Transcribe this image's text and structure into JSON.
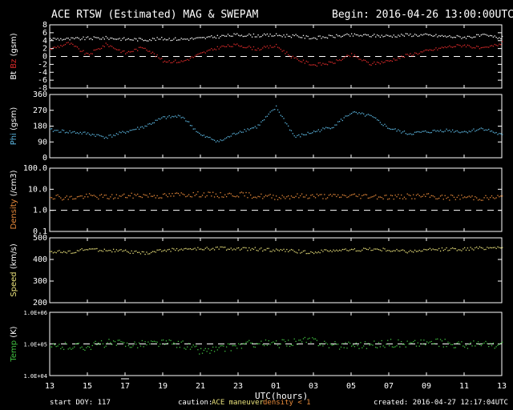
{
  "header": {
    "title": "ACE RTSW (Estimated) MAG & SWEPAM",
    "begin": "Begin: 2016-04-26 13:00:00UTC"
  },
  "footer": {
    "start_doy": "start DOY: 117",
    "caution_label": "caution:",
    "caution_maneuver": "ACE maneuver",
    "caution_density": "density < 1",
    "created": "created: 2016-04-27 12:17:04UTC",
    "xlabel": "UTC(hours)"
  },
  "colors": {
    "background": "#000000",
    "axes": "#ffffff",
    "bt": "#ffffff",
    "bz": "#dd2a2a",
    "phi": "#5bb6e0",
    "density": "#e88a3a",
    "speed": "#e8e07a",
    "temp": "#40c040",
    "caution_maneuver": "#e8e07a",
    "caution_density": "#e88a3a"
  },
  "chart_data": [
    {
      "type": "scatter",
      "panel": "mag",
      "ylabel_parts": [
        "Bt",
        "Bz",
        "(gsm)"
      ],
      "ylim": [
        -8,
        8
      ],
      "yticks": [
        -8,
        -6,
        -4,
        -2,
        0,
        2,
        4,
        6,
        8
      ],
      "reference_lines": [
        0
      ],
      "series": [
        {
          "name": "Bt",
          "color": "bt",
          "x": [
            0,
            1,
            2,
            3,
            4,
            5,
            6,
            7,
            8,
            9,
            10,
            11,
            12,
            13,
            14,
            15,
            16,
            17,
            18,
            19,
            20,
            21,
            22,
            23,
            24
          ],
          "y": [
            4.6,
            4.5,
            4.7,
            4.8,
            4.5,
            4.4,
            4.6,
            4.5,
            4.7,
            5.2,
            5.6,
            5.4,
            5.5,
            5.3,
            4.8,
            5.2,
            5.5,
            5.4,
            5.3,
            5.6,
            5.5,
            5.2,
            5.0,
            5.4,
            4.8
          ]
        },
        {
          "name": "Bz",
          "color": "bz",
          "x": [
            0,
            1,
            2,
            3,
            4,
            5,
            6,
            7,
            8,
            9,
            10,
            11,
            12,
            13,
            14,
            15,
            16,
            17,
            18,
            19,
            20,
            21,
            22,
            23,
            24
          ],
          "y": [
            2.0,
            3.5,
            0.5,
            3.2,
            1.0,
            2.5,
            -1.0,
            -1.2,
            0.8,
            2.5,
            3.0,
            2.0,
            2.8,
            -0.5,
            -2.0,
            -1.5,
            0.5,
            -1.8,
            -1.0,
            0.5,
            1.5,
            2.5,
            3.0,
            2.0,
            3.5
          ]
        }
      ]
    },
    {
      "type": "scatter",
      "panel": "phi",
      "ylabel_parts": [
        "Phi",
        "(gsm)"
      ],
      "ylim": [
        0,
        360
      ],
      "yticks": [
        0,
        90,
        180,
        270,
        360
      ],
      "series": [
        {
          "name": "Phi",
          "color": "phi",
          "x": [
            0,
            1,
            2,
            3,
            4,
            5,
            6,
            7,
            8,
            9,
            10,
            11,
            12,
            13,
            14,
            15,
            16,
            17,
            18,
            19,
            20,
            21,
            22,
            23,
            24
          ],
          "y": [
            160,
            150,
            140,
            120,
            150,
            180,
            230,
            240,
            130,
            95,
            150,
            180,
            290,
            120,
            150,
            180,
            260,
            240,
            170,
            140,
            150,
            160,
            150,
            170,
            130
          ]
        }
      ]
    },
    {
      "type": "scatter",
      "panel": "density",
      "ylabel_parts": [
        "Density",
        "(/cm3)"
      ],
      "yscale": "log",
      "ylim": [
        0.1,
        100
      ],
      "yticks": [
        0.1,
        1.0,
        10.0,
        100.0
      ],
      "reference_lines": [
        1.0
      ],
      "series": [
        {
          "name": "Density",
          "color": "density",
          "x": [
            0,
            1,
            2,
            3,
            4,
            5,
            6,
            7,
            8,
            9,
            10,
            11,
            12,
            13,
            14,
            15,
            16,
            17,
            18,
            19,
            20,
            21,
            22,
            23,
            24
          ],
          "y": [
            5,
            4,
            5,
            4.5,
            5,
            5.5,
            5,
            6,
            6,
            5.5,
            6,
            5,
            4.5,
            5,
            5,
            4.8,
            5.2,
            5,
            4.5,
            4.8,
            5,
            4.2,
            4.5,
            4,
            4.5
          ]
        }
      ]
    },
    {
      "type": "scatter",
      "panel": "speed",
      "ylabel_parts": [
        "Speed",
        "(km/s)"
      ],
      "ylim": [
        200,
        500
      ],
      "yticks": [
        200,
        300,
        400,
        500
      ],
      "series": [
        {
          "name": "Speed",
          "color": "speed",
          "x": [
            0,
            1,
            2,
            3,
            4,
            5,
            6,
            7,
            8,
            9,
            10,
            11,
            12,
            13,
            14,
            15,
            16,
            17,
            18,
            19,
            20,
            21,
            22,
            23,
            24
          ],
          "y": [
            440,
            435,
            450,
            445,
            440,
            430,
            445,
            450,
            450,
            455,
            450,
            450,
            445,
            440,
            435,
            445,
            445,
            450,
            445,
            440,
            445,
            450,
            450,
            455,
            460
          ]
        }
      ]
    },
    {
      "type": "scatter",
      "panel": "temp",
      "ylabel_parts": [
        "Temp",
        "(K)"
      ],
      "yscale": "log",
      "ylim": [
        10000,
        1000000
      ],
      "yticks": [
        10000,
        100000,
        1000000
      ],
      "ytick_labels": [
        "1.0E+04",
        "1.0E+05",
        "1.0E+06"
      ],
      "reference_lines": [
        100000
      ],
      "series": [
        {
          "name": "Temp",
          "color": "temp",
          "x": [
            0,
            1,
            2,
            3,
            4,
            5,
            6,
            7,
            8,
            9,
            10,
            11,
            12,
            13,
            14,
            15,
            16,
            17,
            18,
            19,
            20,
            21,
            22,
            23,
            24
          ],
          "y": [
            80000,
            90000,
            85000,
            110000,
            100000,
            105000,
            110000,
            100000,
            60000,
            70000,
            90000,
            110000,
            100000,
            120000,
            130000,
            90000,
            100000,
            95000,
            110000,
            105000,
            115000,
            110000,
            95000,
            100000,
            90000
          ]
        }
      ]
    }
  ],
  "x_axis": {
    "xlim": [
      0,
      24
    ],
    "tick_labels": [
      "13",
      "15",
      "17",
      "19",
      "21",
      "23",
      "01",
      "03",
      "05",
      "07",
      "09",
      "11",
      "13"
    ],
    "tick_positions": [
      0,
      2,
      4,
      6,
      8,
      10,
      12,
      14,
      16,
      18,
      20,
      22,
      24
    ],
    "marker_position": 4
  }
}
